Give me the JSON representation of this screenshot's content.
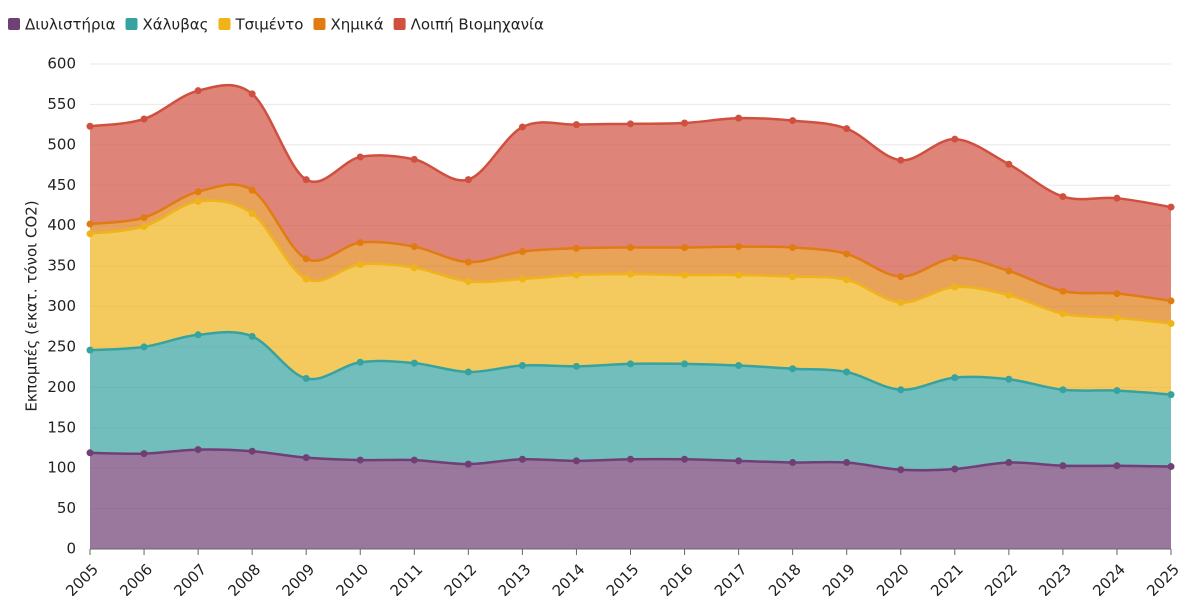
{
  "chart_data": {
    "type": "stacked-area",
    "y_label": "Εκπομπές (εκατ. τόνοι CO2)",
    "categories": [
      "2005",
      "2006",
      "2007",
      "2008",
      "2009",
      "2010",
      "2011",
      "2012",
      "2013",
      "2014",
      "2015",
      "2016",
      "2017",
      "2018",
      "2019",
      "2020",
      "2021",
      "2022",
      "2023",
      "2024",
      "2025"
    ],
    "series": [
      {
        "name": "Διυλιστήρια",
        "color": "#6f3f75",
        "values": [
          119,
          118,
          123,
          121,
          113,
          110,
          110,
          105,
          111,
          109,
          111,
          111,
          109,
          107,
          107,
          98,
          99,
          107,
          103,
          103,
          102
        ]
      },
      {
        "name": "Χάλυβας",
        "color": "#36a3a1",
        "values": [
          127,
          132,
          142,
          142,
          98,
          121,
          120,
          114,
          116,
          117,
          118,
          118,
          118,
          116,
          112,
          99,
          113,
          103,
          94,
          93,
          89
        ]
      },
      {
        "name": "Τσιμέντο",
        "color": "#f0b41a",
        "values": [
          144,
          149,
          165,
          152,
          123,
          121,
          118,
          112,
          107,
          113,
          111,
          110,
          112,
          114,
          114,
          108,
          112,
          104,
          94,
          90,
          88
        ]
      },
      {
        "name": "Χημικά",
        "color": "#e07c12",
        "values": [
          12,
          11,
          12,
          29,
          25,
          27,
          26,
          24,
          34,
          33,
          33,
          34,
          35,
          36,
          32,
          32,
          36,
          30,
          28,
          30,
          28
        ]
      },
      {
        "name": "Λοιπή Βιομηχανία",
        "color": "#d0503f",
        "values": [
          121,
          122,
          125,
          119,
          98,
          106,
          108,
          102,
          154,
          153,
          153,
          154,
          159,
          157,
          155,
          144,
          147,
          132,
          117,
          118,
          116
        ]
      }
    ],
    "ylim": [
      0,
      600
    ],
    "yticks": [
      0,
      50,
      100,
      150,
      200,
      250,
      300,
      350,
      400,
      450,
      500,
      550,
      600
    ],
    "grid": true,
    "legend": "top-left"
  }
}
